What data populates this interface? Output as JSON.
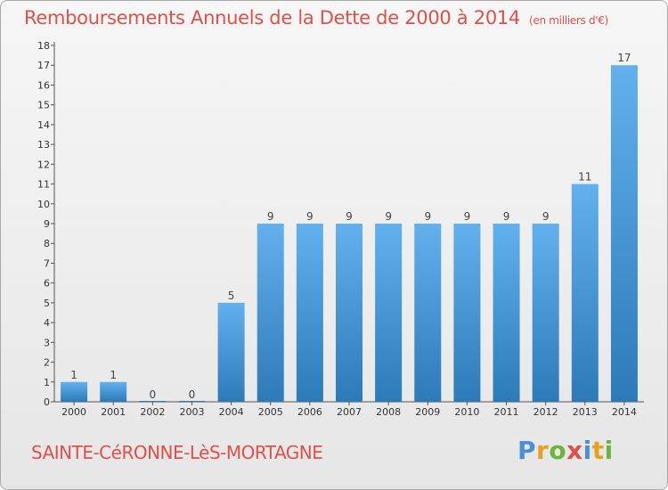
{
  "header": {
    "title": "Remboursements Annuels de la Dette de 2000 à 2014",
    "unit": "(en milliers d'€)"
  },
  "footer": {
    "commune": "SAINTE-CéRONNE-LèS-MORTAGNE",
    "logo_letters": [
      "P",
      "r",
      "o",
      "x",
      "i",
      "t",
      "i"
    ],
    "logo_colors": [
      "#4a90d9",
      "#e8a020",
      "#6cb33f",
      "#e0504a",
      "#4a90d9",
      "#e8a020",
      "#6cb33f"
    ]
  },
  "colors": {
    "bar_light": "#62b0ee",
    "bar_dark": "#2d7ab8",
    "axis": "#555555",
    "title": "#e0504a"
  },
  "chart_data": {
    "type": "bar",
    "title": "Remboursements Annuels de la Dette de 2000 à 2014",
    "xlabel": "",
    "ylabel": "",
    "ylim": [
      0,
      18
    ],
    "yticks": [
      0,
      1,
      2,
      3,
      4,
      5,
      6,
      7,
      8,
      9,
      10,
      11,
      12,
      13,
      14,
      15,
      16,
      17,
      18
    ],
    "grid": false,
    "categories": [
      "2000",
      "2001",
      "2002",
      "2003",
      "2004",
      "2005",
      "2006",
      "2007",
      "2008",
      "2009",
      "2010",
      "2011",
      "2012",
      "2013",
      "2014"
    ],
    "values": [
      1,
      1,
      0,
      0,
      5,
      9,
      9,
      9,
      9,
      9,
      9,
      9,
      9,
      11,
      17
    ],
    "data_labels": [
      "1",
      "1",
      "0",
      "0",
      "5",
      "9",
      "9",
      "9",
      "9",
      "9",
      "9",
      "9",
      "9",
      "11",
      "17"
    ]
  }
}
